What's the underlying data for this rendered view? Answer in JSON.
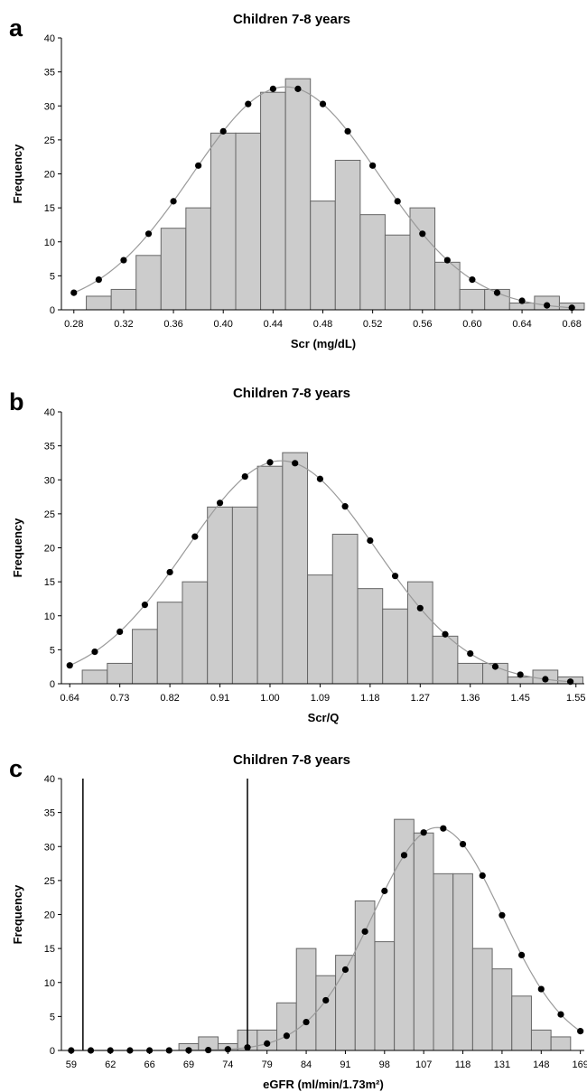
{
  "chart_data": [
    {
      "panel": "a",
      "type": "bar",
      "title": "Children 7-8 years",
      "xlabel": "Scr (mg/dL)",
      "ylabel": "Frequency",
      "ylim": [
        0,
        40
      ],
      "yticks": [
        0,
        5,
        10,
        15,
        20,
        25,
        30,
        35,
        40
      ],
      "xlim": [
        0.27,
        0.69
      ],
      "xticks": [
        "0.28",
        "0.32",
        "0.36",
        "0.40",
        "0.44",
        "0.48",
        "0.52",
        "0.56",
        "0.60",
        "0.64",
        "0.68"
      ],
      "bin_width": 0.02,
      "bin_centers": [
        0.3,
        0.32,
        0.34,
        0.36,
        0.38,
        0.4,
        0.42,
        0.44,
        0.46,
        0.48,
        0.5,
        0.52,
        0.54,
        0.56,
        0.58,
        0.6,
        0.62,
        0.64,
        0.66,
        0.68
      ],
      "values": [
        2,
        3,
        8,
        12,
        15,
        26,
        26,
        32,
        34,
        16,
        22,
        14,
        11,
        15,
        7,
        3,
        3,
        1,
        2,
        1
      ],
      "curve_mean": 0.45,
      "curve_sd": 0.075,
      "curve_peak": 32.8,
      "curve_points_x": [
        0.28,
        0.3,
        0.32,
        0.34,
        0.36,
        0.38,
        0.4,
        0.42,
        0.44,
        0.46,
        0.48,
        0.5,
        0.52,
        0.54,
        0.56,
        0.58,
        0.6,
        0.62,
        0.64,
        0.66,
        0.68
      ],
      "grid": false,
      "legend": "none",
      "ref_lines": []
    },
    {
      "panel": "b",
      "type": "bar",
      "title": "Children 7-8 years",
      "xlabel": "Scr/Q",
      "ylabel": "Frequency",
      "ylim": [
        0,
        40
      ],
      "yticks": [
        0,
        5,
        10,
        15,
        20,
        25,
        30,
        35,
        40
      ],
      "xlim": [
        0.625,
        1.565
      ],
      "xticks": [
        "0.64",
        "0.73",
        "0.82",
        "0.91",
        "1.00",
        "1.09",
        "1.18",
        "1.27",
        "1.36",
        "1.45",
        "1.55"
      ],
      "bin_width": 0.045,
      "bin_centers": [
        0.685,
        0.73,
        0.775,
        0.82,
        0.865,
        0.91,
        0.955,
        1.0,
        1.045,
        1.09,
        1.135,
        1.18,
        1.225,
        1.27,
        1.315,
        1.36,
        1.405,
        1.45,
        1.495,
        1.54
      ],
      "values": [
        2,
        3,
        8,
        12,
        15,
        26,
        26,
        32,
        34,
        16,
        22,
        14,
        11,
        15,
        7,
        3,
        3,
        1,
        2,
        1
      ],
      "curve_mean": 1.02,
      "curve_sd": 0.17,
      "curve_peak": 32.8,
      "curve_points_x": [
        0.64,
        0.685,
        0.73,
        0.775,
        0.82,
        0.865,
        0.91,
        0.955,
        1.0,
        1.045,
        1.09,
        1.135,
        1.18,
        1.225,
        1.27,
        1.315,
        1.36,
        1.405,
        1.45,
        1.495,
        1.54
      ],
      "grid": false,
      "legend": "none",
      "ref_lines": []
    },
    {
      "panel": "c",
      "type": "bar",
      "title": "Children 7-8 years",
      "xlabel": "eGFR (ml/min/1.73m²)",
      "ylabel": "Frequency",
      "ylim": [
        0,
        40
      ],
      "yticks": [
        0,
        5,
        10,
        15,
        20,
        25,
        30,
        35,
        40
      ],
      "xlim": [
        0,
        26.7
      ],
      "xticks": [
        "59",
        "62",
        "66",
        "69",
        "74",
        "79",
        "84",
        "91",
        "98",
        "107",
        "118",
        "131",
        "148",
        "169"
      ],
      "xtick_positions": [
        0.5,
        2.5,
        4.5,
        6.5,
        8.5,
        10.5,
        12.5,
        14.5,
        16.5,
        18.5,
        20.5,
        22.5,
        24.5,
        26.5
      ],
      "bin_centers": [
        6.5,
        7.5,
        8.5,
        9.5,
        10.5,
        11.5,
        12.5,
        13.5,
        14.5,
        15.5,
        16.5,
        17.5,
        18.5,
        19.5,
        20.5,
        21.5,
        22.5,
        23.5,
        24.5,
        25.5
      ],
      "values": [
        1,
        2,
        1,
        3,
        3,
        7,
        15,
        11,
        14,
        22,
        16,
        34,
        32,
        26,
        26,
        15,
        12,
        8,
        3,
        2
      ],
      "curve_mean": 19.2,
      "curve_sd": 3.3,
      "curve_peak": 32.8,
      "curve_points_x": [
        0.5,
        1.5,
        2.5,
        3.5,
        4.5,
        5.5,
        6.5,
        7.5,
        8.5,
        9.5,
        10.5,
        11.5,
        12.5,
        13.5,
        14.5,
        15.5,
        16.5,
        17.5,
        18.5,
        19.5,
        20.5,
        21.5,
        22.5,
        23.5,
        24.5,
        25.5,
        26.5
      ],
      "grid": false,
      "legend": "none",
      "ref_lines": [
        1.1,
        9.5
      ]
    }
  ]
}
